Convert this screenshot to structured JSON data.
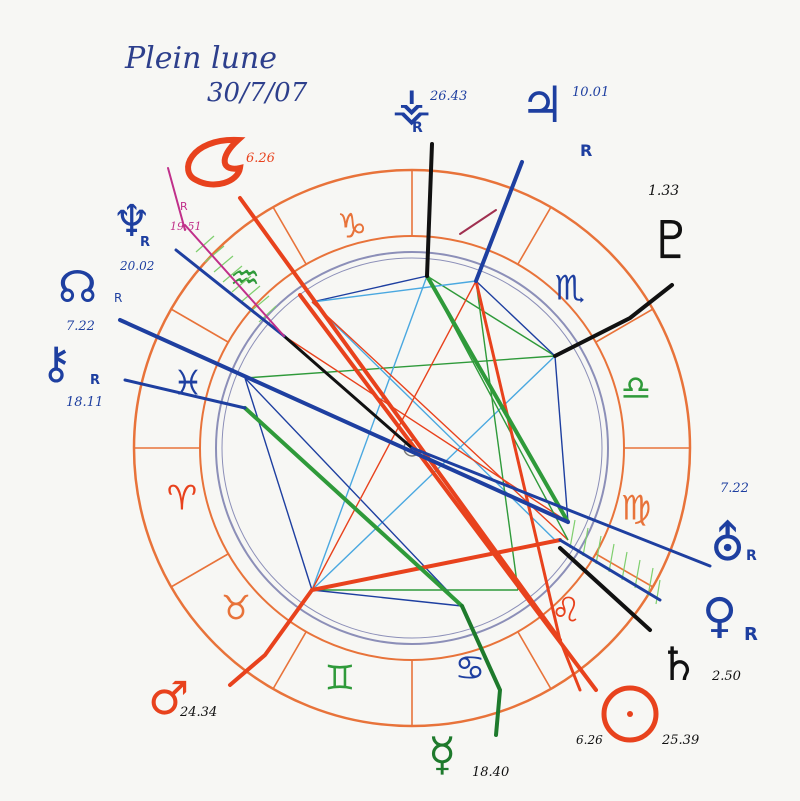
{
  "title": {
    "line1": "Plein lune",
    "line2": "30/7/07"
  },
  "signs": [
    {
      "name": "capricorn",
      "glyph": "♑"
    },
    {
      "name": "scorpio",
      "glyph": "♏"
    },
    {
      "name": "libra",
      "glyph": "♎"
    },
    {
      "name": "virgo",
      "glyph": "♍"
    },
    {
      "name": "leo",
      "glyph": "♌"
    },
    {
      "name": "cancer",
      "glyph": "♋"
    },
    {
      "name": "gemini",
      "glyph": "♊"
    },
    {
      "name": "taurus",
      "glyph": "♉"
    },
    {
      "name": "aries",
      "glyph": "♈"
    },
    {
      "name": "pisces",
      "glyph": "♓"
    },
    {
      "name": "aquarius",
      "glyph": "♒"
    }
  ],
  "planets": [
    {
      "name": "vesta",
      "glyph": "⚶",
      "degree": "26.43",
      "retro": "R",
      "color": "#1e3fa0"
    },
    {
      "name": "jupiter",
      "glyph": "♃",
      "degree": "10.01",
      "retro": "R",
      "color": "#1e3fa0"
    },
    {
      "name": "pluto",
      "glyph": "♇",
      "degree": "1.33",
      "retro": "",
      "color": "#111111"
    },
    {
      "name": "uranus-left",
      "glyph": "⛢",
      "degree": "7.22",
      "retro": "",
      "color": "#1e3fa0"
    },
    {
      "name": "uranus-right",
      "glyph": "⛢",
      "degree": "7.22",
      "retro": "R",
      "color": "#1e3fa0"
    },
    {
      "name": "venus",
      "glyph": "♀",
      "degree": "2.50",
      "retro": "R",
      "color": "#1e3fa0"
    },
    {
      "name": "saturn",
      "glyph": "♄",
      "degree": "",
      "retro": "",
      "color": "#111111"
    },
    {
      "name": "sun",
      "glyph": "☉",
      "degree": "25.39",
      "retro": "",
      "color": "#e8421d"
    },
    {
      "name": "mercury",
      "glyph": "☿",
      "degree": "18.40",
      "retro": "",
      "color": "#1e7a2c"
    },
    {
      "name": "mars",
      "glyph": "♂",
      "degree": "24.34",
      "retro": "",
      "color": "#e8421d"
    },
    {
      "name": "chiron",
      "glyph": "⚷",
      "degree": "18.11",
      "retro": "R",
      "color": "#1e3fa0"
    },
    {
      "name": "neptune",
      "glyph": "♆",
      "degree": "20.02",
      "retro": "R",
      "color": "#1e3fa0"
    },
    {
      "name": "node",
      "glyph": "☊",
      "degree": "",
      "retro": "R",
      "color": "#1e3fa0"
    },
    {
      "name": "moon",
      "glyph": "☾",
      "degree": "6.26",
      "retro": "",
      "color": "#e8421d"
    },
    {
      "name": "moon-label-sun",
      "glyph": "",
      "degree": "6.26",
      "retro": "",
      "color": "#e8421d"
    },
    {
      "name": "neptune-small",
      "glyph": "",
      "degree": "19.51",
      "retro": "R",
      "color": "#c0308a"
    }
  ],
  "colors": {
    "orange": "#e8733a",
    "red": "#e8421d",
    "blue": "#1e3fa0",
    "lightblue": "#4aa8e0",
    "green": "#2f9a3a",
    "black": "#111111",
    "ring": "#8c8fb8"
  }
}
